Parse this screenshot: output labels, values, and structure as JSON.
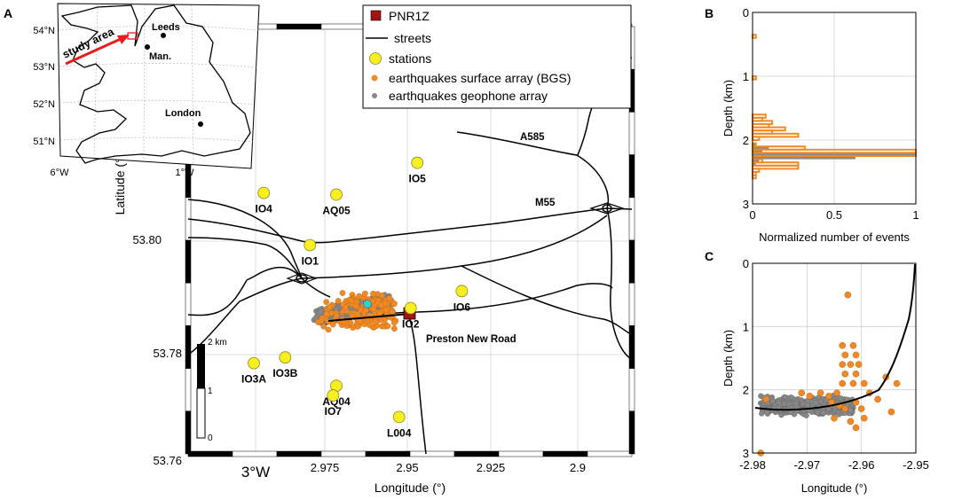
{
  "panel_letters": {
    "a": "A",
    "b": "B",
    "c": "C"
  },
  "colors": {
    "station": "#f7ef1f",
    "station_edge": "#8a8a2a",
    "bgs": "#f08a24",
    "geophone": "#888888",
    "pnr1z": "#a31414",
    "street": "#000000",
    "injection": "#27d3d3",
    "arrow": "#e81c1c"
  },
  "inset": {
    "cities": [
      "Leeds",
      "Man.",
      "London"
    ],
    "study_area_label": "study area",
    "lat_ticks": [
      "54°N",
      "53°N",
      "52°N",
      "51°N"
    ],
    "lon_ticks": [
      "6°W",
      "1°W"
    ]
  },
  "map": {
    "legend": [
      {
        "label": "PNR1Z",
        "symbol": "square"
      },
      {
        "label": "streets",
        "symbol": "line"
      },
      {
        "label": "stations",
        "symbol": "station"
      },
      {
        "label": "earthquakes surface array (BGS)",
        "symbol": "bgs"
      },
      {
        "label": "earthquakes geophone array",
        "symbol": "geophone"
      }
    ],
    "ylabel": "Latitude (°)",
    "xlabel": "Longitude (°)",
    "lat_ticks": [
      "53.80",
      "53.78",
      "53.76"
    ],
    "lon_ticks": [
      "3°W",
      "2.975",
      "2.95",
      "2.925",
      "2.9"
    ],
    "road_labels": [
      "A585",
      "M55",
      "Preston New Road"
    ],
    "stations": [
      {
        "name": "IO5",
        "lon": -2.947,
        "lat": 53.8138
      },
      {
        "name": "IO4",
        "lon": -2.9935,
        "lat": 53.8085
      },
      {
        "name": "AQ05",
        "lon": -2.9715,
        "lat": 53.8082
      },
      {
        "name": "IO1",
        "lon": -2.9795,
        "lat": 53.7993
      },
      {
        "name": "IO6",
        "lon": -2.9335,
        "lat": 53.7912
      },
      {
        "name": "IO2",
        "lon": -2.949,
        "lat": 53.7882
      },
      {
        "name": "IO3A",
        "lon": -2.9965,
        "lat": 53.7785
      },
      {
        "name": "IO3B",
        "lon": -2.987,
        "lat": 53.7795
      },
      {
        "name": "AQ04",
        "lon": -2.9715,
        "lat": 53.7745
      },
      {
        "name": "IO7",
        "lon": -2.9725,
        "lat": 53.7728
      },
      {
        "name": "L004",
        "lon": -2.9525,
        "lat": 53.769
      }
    ],
    "scalebar": {
      "title": "2 km",
      "ticks": [
        "1",
        "0"
      ]
    }
  },
  "panel_b": {
    "ylabel": "Depth (km)",
    "xlabel": "Normalized number of events",
    "x_ticks": [
      "0",
      "0.5",
      "1"
    ],
    "y_ticks": [
      "0",
      "1",
      "2",
      "3"
    ]
  },
  "panel_c": {
    "ylabel": "Depth (km)",
    "xlabel": "Longitude (°)",
    "x_ticks": [
      "-2.98",
      "-2.97",
      "-2.96",
      "-2.95"
    ],
    "y_ticks": [
      "0",
      "1",
      "2",
      "3"
    ]
  },
  "chart_data": [
    {
      "type": "histogram",
      "panel": "B",
      "orientation": "horizontal",
      "xlabel": "Normalized number of events",
      "ylabel": "Depth (km)",
      "xlim": [
        0,
        1
      ],
      "ylim": [
        3,
        0
      ],
      "grid": true,
      "series": [
        {
          "name": "earthquakes surface array (BGS)",
          "bins": [
            [
              0.35,
              0.4,
              0.02
            ],
            [
              1.0,
              1.05,
              0.02
            ],
            [
              1.0,
              1.05,
              0.02
            ],
            [
              1.6,
              1.65,
              0.08
            ],
            [
              1.65,
              1.7,
              0.06
            ],
            [
              1.7,
              1.75,
              0.12
            ],
            [
              1.75,
              1.8,
              0.1
            ],
            [
              1.8,
              1.85,
              0.2
            ],
            [
              1.85,
              1.9,
              0.12
            ],
            [
              1.9,
              1.95,
              0.28
            ],
            [
              1.95,
              2.0,
              0.04
            ],
            [
              2.05,
              2.1,
              0.02
            ],
            [
              2.1,
              2.15,
              0.32
            ],
            [
              2.15,
              2.2,
              1.0
            ],
            [
              2.2,
              2.25,
              1.0
            ],
            [
              2.3,
              2.35,
              0.06
            ],
            [
              2.35,
              2.4,
              0.28
            ],
            [
              2.4,
              2.45,
              0.28
            ],
            [
              2.45,
              2.5,
              0.04
            ],
            [
              2.5,
              2.55,
              0.02
            ],
            [
              2.55,
              2.6,
              0.02
            ]
          ]
        },
        {
          "name": "earthquakes geophone array",
          "bins": [
            [
              2.05,
              2.1,
              0.02
            ],
            [
              2.1,
              2.15,
              0.1
            ],
            [
              2.15,
              2.2,
              0.06
            ],
            [
              2.2,
              2.25,
              1.0
            ],
            [
              2.25,
              2.3,
              0.63
            ],
            [
              2.3,
              2.35,
              0.04
            ],
            [
              2.35,
              2.4,
              0.02
            ]
          ]
        }
      ]
    },
    {
      "type": "scatter",
      "panel": "C",
      "xlabel": "Longitude (°)",
      "ylabel": "Depth (km)",
      "xlim": [
        -2.98,
        -2.95
      ],
      "ylim": [
        3,
        0
      ],
      "grid": true,
      "series": [
        {
          "name": "earthquakes surface array (BGS)",
          "points": [
            [
              -2.9625,
              0.5
            ],
            [
              -2.9635,
              1.3
            ],
            [
              -2.9615,
              1.3
            ],
            [
              -2.963,
              1.45
            ],
            [
              -2.961,
              1.45
            ],
            [
              -2.9635,
              1.6
            ],
            [
              -2.962,
              1.6
            ],
            [
              -2.9605,
              1.6
            ],
            [
              -2.963,
              1.75
            ],
            [
              -2.961,
              1.75
            ],
            [
              -2.9595,
              1.9
            ],
            [
              -2.9615,
              1.9
            ],
            [
              -2.9635,
              1.9
            ],
            [
              -2.9555,
              1.8
            ],
            [
              -2.9535,
              1.9
            ],
            [
              -2.9545,
              2.35
            ],
            [
              -2.957,
              2.15
            ],
            [
              -2.9585,
              2.05
            ],
            [
              -2.9775,
              2.15
            ],
            [
              -2.971,
              2.05
            ],
            [
              -2.9695,
              2.1
            ],
            [
              -2.9675,
              2.05
            ],
            [
              -2.966,
              2.1
            ],
            [
              -2.9645,
              2.05
            ],
            [
              -2.9655,
              2.2
            ],
            [
              -2.964,
              2.25
            ],
            [
              -2.963,
              2.3
            ],
            [
              -2.961,
              2.2
            ],
            [
              -2.96,
              2.3
            ],
            [
              -2.965,
              2.45
            ],
            [
              -2.962,
              2.5
            ],
            [
              -2.961,
              2.6
            ],
            [
              -2.9595,
              2.45
            ],
            [
              -2.9785,
              3.0
            ]
          ]
        },
        {
          "name": "earthquakes geophone array",
          "cluster": {
            "x_range": [
              -2.9785,
              -2.9615
            ],
            "depth_center": 2.25,
            "depth_spread": 0.1
          }
        }
      ]
    }
  ]
}
